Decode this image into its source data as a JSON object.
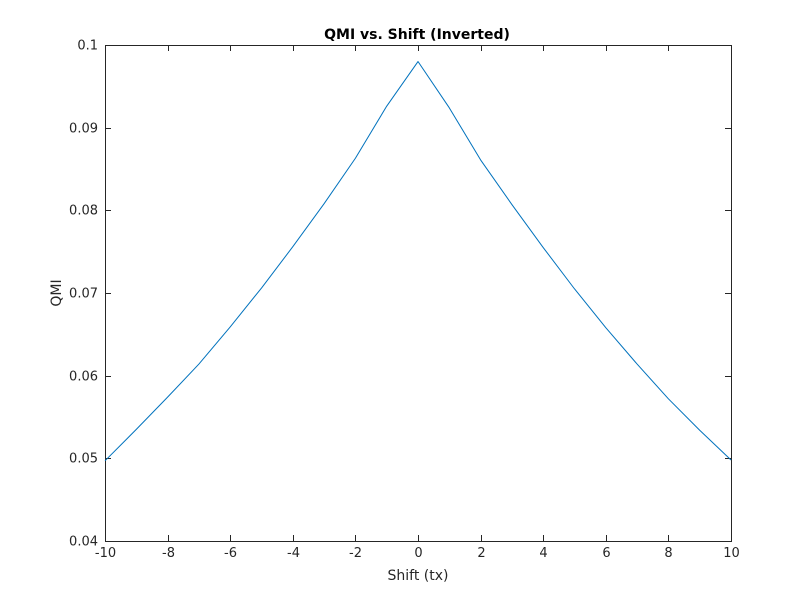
{
  "chart_data": {
    "type": "line",
    "title": "QMI vs. Shift (Inverted)",
    "xlabel": "Shift (tx)",
    "ylabel": "QMI",
    "xlim": [
      -10,
      10
    ],
    "ylim": [
      0.04,
      0.1
    ],
    "xticks": [
      "-10",
      "-8",
      "-6",
      "-4",
      "-2",
      "0",
      "2",
      "4",
      "6",
      "8",
      "10"
    ],
    "yticks": [
      "0.04",
      "0.05",
      "0.06",
      "0.07",
      "0.08",
      "0.09",
      "0.1"
    ],
    "grid": false,
    "legend": false,
    "series": [
      {
        "color": "#0072bd",
        "x": [
          -10,
          -9,
          -8,
          -7,
          -6,
          -5,
          -4,
          -3,
          -2,
          -1,
          0,
          1,
          2,
          3,
          4,
          5,
          6,
          7,
          8,
          9,
          10
        ],
        "y": [
          0.0497,
          0.0535,
          0.0574,
          0.0614,
          0.0659,
          0.0706,
          0.0756,
          0.0808,
          0.0863,
          0.0926,
          0.098,
          0.0924,
          0.0861,
          0.0807,
          0.0755,
          0.0705,
          0.0658,
          0.0614,
          0.0572,
          0.0534,
          0.0498
        ]
      }
    ]
  }
}
